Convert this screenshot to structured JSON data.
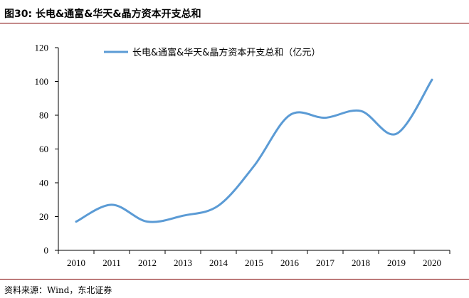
{
  "figure": {
    "title": "图30:  长电&通富&华天&晶方资本开支总和",
    "source": "资料来源：Wind，东北证券"
  },
  "colors": {
    "line": "#5b9bd5",
    "rule": "#7f0000",
    "axis": "#000000"
  },
  "chart_data": {
    "type": "line",
    "title": "",
    "xlabel": "",
    "ylabel": "",
    "categories": [
      "2010",
      "2011",
      "2012",
      "2013",
      "2014",
      "2015",
      "2016",
      "2017",
      "2018",
      "2019",
      "2020"
    ],
    "series": [
      {
        "name": "长电&通富&华天&晶方资本开支总和（亿元）",
        "values": [
          17,
          27,
          17,
          20.5,
          26.5,
          50,
          80,
          78.5,
          82.5,
          69,
          101
        ]
      }
    ],
    "ylim": [
      0,
      120
    ],
    "yticks": [
      0,
      20,
      40,
      60,
      80,
      100,
      120
    ],
    "grid": false,
    "legend": "top-center"
  }
}
